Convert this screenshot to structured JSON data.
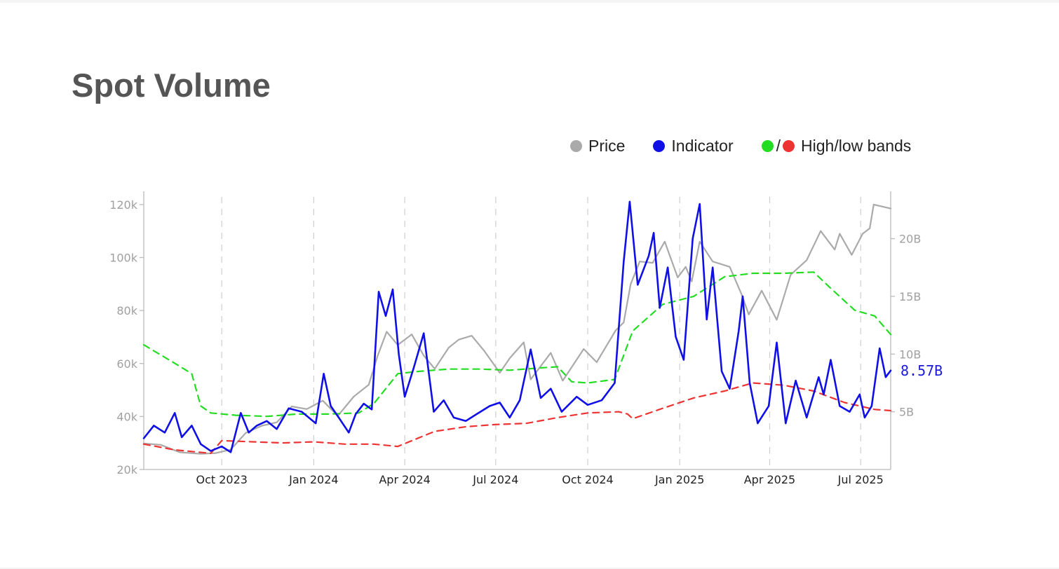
{
  "page": {
    "title": "Spot Volume"
  },
  "legend": {
    "price": {
      "label": "Price",
      "color": "#aaaaaa"
    },
    "indicator": {
      "label": "Indicator",
      "color": "#1010e6"
    },
    "bands": {
      "label": "High/low bands",
      "separator": "/",
      "high_color": "#22dd22",
      "low_color": "#ee3333"
    }
  },
  "chart_data": {
    "type": "line",
    "title": "Spot Volume",
    "x_axis": {
      "range": [
        "2023-07-15",
        "2025-07-31"
      ],
      "ticks": [
        "Oct 2023",
        "Jan 2024",
        "Apr 2024",
        "Jul 2024",
        "Oct 2024",
        "Jan 2025",
        "Apr 2025",
        "Jul 2025"
      ],
      "tick_dates": [
        "2023-10-01",
        "2024-01-01",
        "2024-04-01",
        "2024-07-01",
        "2024-10-01",
        "2025-01-01",
        "2025-04-01",
        "2025-07-01"
      ],
      "grid": "dashed-vertical"
    },
    "y_left": {
      "label": "Price",
      "range": [
        20000,
        125000
      ],
      "ticks": [
        20000,
        40000,
        60000,
        80000,
        100000,
        120000
      ],
      "tick_labels": [
        "20k",
        "40k",
        "60k",
        "80k",
        "100k",
        "120k"
      ]
    },
    "y_right": {
      "label": "Indicator",
      "range": [
        0,
        24.1
      ],
      "ticks": [
        5,
        10,
        15,
        20
      ],
      "tick_labels": [
        "5B",
        "10B",
        "15B",
        "20B"
      ]
    },
    "last_value_label": "8.57B",
    "series": [
      {
        "name": "Price",
        "axis": "left",
        "color": "#aaaaaa",
        "style": "solid",
        "points": [
          [
            "2023-07-15",
            29800
          ],
          [
            "2023-08-01",
            29300
          ],
          [
            "2023-08-20",
            26500
          ],
          [
            "2023-09-10",
            25900
          ],
          [
            "2023-09-25",
            26200
          ],
          [
            "2023-10-10",
            27500
          ],
          [
            "2023-10-25",
            33800
          ],
          [
            "2023-11-10",
            36500
          ],
          [
            "2023-11-25",
            37800
          ],
          [
            "2023-12-10",
            43800
          ],
          [
            "2023-12-25",
            42800
          ],
          [
            "2024-01-10",
            46000
          ],
          [
            "2024-01-25",
            40200
          ],
          [
            "2024-02-10",
            47500
          ],
          [
            "2024-02-25",
            52000
          ],
          [
            "2024-03-05",
            63000
          ],
          [
            "2024-03-14",
            72000
          ],
          [
            "2024-03-25",
            67000
          ],
          [
            "2024-04-08",
            71000
          ],
          [
            "2024-04-20",
            63000
          ],
          [
            "2024-05-01",
            58000
          ],
          [
            "2024-05-15",
            66000
          ],
          [
            "2024-05-25",
            69000
          ],
          [
            "2024-06-07",
            70500
          ],
          [
            "2024-06-20",
            64500
          ],
          [
            "2024-07-05",
            56500
          ],
          [
            "2024-07-15",
            62000
          ],
          [
            "2024-07-29",
            68000
          ],
          [
            "2024-08-05",
            54000
          ],
          [
            "2024-08-25",
            64000
          ],
          [
            "2024-09-06",
            53500
          ],
          [
            "2024-09-27",
            65500
          ],
          [
            "2024-10-10",
            60500
          ],
          [
            "2024-10-29",
            72500
          ],
          [
            "2024-11-06",
            75500
          ],
          [
            "2024-11-13",
            90000
          ],
          [
            "2024-11-22",
            98500
          ],
          [
            "2024-12-05",
            98000
          ],
          [
            "2024-12-17",
            106000
          ],
          [
            "2024-12-30",
            92500
          ],
          [
            "2025-01-07",
            96500
          ],
          [
            "2025-01-13",
            91000
          ],
          [
            "2025-01-21",
            106000
          ],
          [
            "2025-02-03",
            98500
          ],
          [
            "2025-02-20",
            96500
          ],
          [
            "2025-03-04",
            86000
          ],
          [
            "2025-03-11",
            78500
          ],
          [
            "2025-03-24",
            87500
          ],
          [
            "2025-04-08",
            76500
          ],
          [
            "2025-04-22",
            93500
          ],
          [
            "2025-05-08",
            99000
          ],
          [
            "2025-05-22",
            110000
          ],
          [
            "2025-06-05",
            103000
          ],
          [
            "2025-06-10",
            109000
          ],
          [
            "2025-06-22",
            101000
          ],
          [
            "2025-07-03",
            109000
          ],
          [
            "2025-07-10",
            111000
          ],
          [
            "2025-07-14",
            120000
          ],
          [
            "2025-07-31",
            118500
          ]
        ]
      },
      {
        "name": "Indicator",
        "axis": "right",
        "color": "#1010e6",
        "style": "solid",
        "points": [
          [
            "2023-07-15",
            2.7
          ],
          [
            "2023-07-25",
            3.8
          ],
          [
            "2023-08-05",
            3.2
          ],
          [
            "2023-08-15",
            4.9
          ],
          [
            "2023-08-22",
            2.8
          ],
          [
            "2023-09-01",
            3.8
          ],
          [
            "2023-09-10",
            2.2
          ],
          [
            "2023-09-20",
            1.6
          ],
          [
            "2023-10-01",
            2.0
          ],
          [
            "2023-10-10",
            1.5
          ],
          [
            "2023-10-20",
            4.9
          ],
          [
            "2023-10-28",
            3.2
          ],
          [
            "2023-11-05",
            3.8
          ],
          [
            "2023-11-15",
            4.2
          ],
          [
            "2023-11-25",
            3.5
          ],
          [
            "2023-12-07",
            5.3
          ],
          [
            "2023-12-20",
            5.0
          ],
          [
            "2024-01-03",
            4.0
          ],
          [
            "2024-01-11",
            8.3
          ],
          [
            "2024-01-18",
            5.5
          ],
          [
            "2024-01-26",
            4.5
          ],
          [
            "2024-02-05",
            3.2
          ],
          [
            "2024-02-12",
            4.8
          ],
          [
            "2024-02-20",
            5.7
          ],
          [
            "2024-02-28",
            5.2
          ],
          [
            "2024-03-06",
            15.4
          ],
          [
            "2024-03-13",
            13.3
          ],
          [
            "2024-03-20",
            15.6
          ],
          [
            "2024-03-26",
            10.0
          ],
          [
            "2024-04-01",
            6.3
          ],
          [
            "2024-04-10",
            8.8
          ],
          [
            "2024-04-20",
            11.8
          ],
          [
            "2024-04-30",
            5.0
          ],
          [
            "2024-05-10",
            6.0
          ],
          [
            "2024-05-20",
            4.5
          ],
          [
            "2024-06-01",
            4.2
          ],
          [
            "2024-06-12",
            4.8
          ],
          [
            "2024-06-25",
            5.5
          ],
          [
            "2024-07-05",
            5.8
          ],
          [
            "2024-07-15",
            4.5
          ],
          [
            "2024-07-25",
            6.0
          ],
          [
            "2024-08-05",
            10.4
          ],
          [
            "2024-08-15",
            6.2
          ],
          [
            "2024-08-25",
            7.0
          ],
          [
            "2024-09-05",
            5.0
          ],
          [
            "2024-09-20",
            6.3
          ],
          [
            "2024-10-01",
            5.6
          ],
          [
            "2024-10-15",
            6.0
          ],
          [
            "2024-10-28",
            7.5
          ],
          [
            "2024-11-06",
            18.0
          ],
          [
            "2024-11-12",
            23.2
          ],
          [
            "2024-11-20",
            16.0
          ],
          [
            "2024-12-01",
            18.5
          ],
          [
            "2024-12-06",
            20.5
          ],
          [
            "2024-12-12",
            14.0
          ],
          [
            "2024-12-20",
            17.5
          ],
          [
            "2024-12-28",
            11.5
          ],
          [
            "2025-01-05",
            9.5
          ],
          [
            "2025-01-14",
            20.0
          ],
          [
            "2025-01-21",
            23.0
          ],
          [
            "2025-01-28",
            13.0
          ],
          [
            "2025-02-03",
            17.5
          ],
          [
            "2025-02-12",
            8.5
          ],
          [
            "2025-02-20",
            7.0
          ],
          [
            "2025-03-01",
            12.0
          ],
          [
            "2025-03-05",
            15.0
          ],
          [
            "2025-03-12",
            7.5
          ],
          [
            "2025-03-20",
            4.0
          ],
          [
            "2025-03-31",
            5.5
          ],
          [
            "2025-04-08",
            11.0
          ],
          [
            "2025-04-17",
            4.0
          ],
          [
            "2025-04-27",
            7.7
          ],
          [
            "2025-05-08",
            4.5
          ],
          [
            "2025-05-20",
            8.0
          ],
          [
            "2025-05-25",
            6.5
          ],
          [
            "2025-06-01",
            9.5
          ],
          [
            "2025-06-10",
            5.5
          ],
          [
            "2025-06-20",
            5.0
          ],
          [
            "2025-06-30",
            6.5
          ],
          [
            "2025-07-05",
            4.5
          ],
          [
            "2025-07-12",
            5.5
          ],
          [
            "2025-07-20",
            10.5
          ],
          [
            "2025-07-26",
            8.0
          ],
          [
            "2025-07-31",
            8.57
          ]
        ]
      },
      {
        "name": "High band",
        "axis": "right",
        "color": "#22dd22",
        "style": "dashed",
        "points": [
          [
            "2023-07-15",
            10.8
          ],
          [
            "2023-08-15",
            9.2
          ],
          [
            "2023-09-01",
            8.3
          ],
          [
            "2023-09-10",
            5.5
          ],
          [
            "2023-09-20",
            4.9
          ],
          [
            "2023-10-15",
            4.7
          ],
          [
            "2023-11-15",
            4.6
          ],
          [
            "2023-12-15",
            4.8
          ],
          [
            "2024-01-15",
            4.8
          ],
          [
            "2024-02-15",
            4.9
          ],
          [
            "2024-03-01",
            5.7
          ],
          [
            "2024-03-25",
            8.3
          ],
          [
            "2024-04-15",
            8.5
          ],
          [
            "2024-05-15",
            8.7
          ],
          [
            "2024-06-15",
            8.7
          ],
          [
            "2024-07-15",
            8.6
          ],
          [
            "2024-08-15",
            8.8
          ],
          [
            "2024-09-01",
            8.9
          ],
          [
            "2024-09-15",
            7.6
          ],
          [
            "2024-10-01",
            7.5
          ],
          [
            "2024-10-28",
            7.8
          ],
          [
            "2024-11-15",
            12.0
          ],
          [
            "2024-12-15",
            14.3
          ],
          [
            "2025-01-15",
            15.0
          ],
          [
            "2025-02-15",
            16.7
          ],
          [
            "2025-03-15",
            17.0
          ],
          [
            "2025-04-15",
            17.0
          ],
          [
            "2025-05-15",
            17.1
          ],
          [
            "2025-06-01",
            15.7
          ],
          [
            "2025-06-25",
            13.8
          ],
          [
            "2025-07-15",
            13.3
          ],
          [
            "2025-07-31",
            11.7
          ]
        ]
      },
      {
        "name": "Low band",
        "axis": "right",
        "color": "#ee3333",
        "style": "dashed",
        "points": [
          [
            "2023-07-15",
            2.2
          ],
          [
            "2023-08-15",
            1.7
          ],
          [
            "2023-09-20",
            1.4
          ],
          [
            "2023-10-01",
            2.5
          ],
          [
            "2023-11-01",
            2.4
          ],
          [
            "2023-12-01",
            2.3
          ],
          [
            "2024-01-01",
            2.4
          ],
          [
            "2024-02-01",
            2.2
          ],
          [
            "2024-03-01",
            2.2
          ],
          [
            "2024-03-25",
            2.0
          ],
          [
            "2024-05-01",
            3.3
          ],
          [
            "2024-06-01",
            3.7
          ],
          [
            "2024-07-01",
            3.9
          ],
          [
            "2024-08-01",
            4.0
          ],
          [
            "2024-09-01",
            4.5
          ],
          [
            "2024-10-01",
            4.9
          ],
          [
            "2024-11-01",
            5.0
          ],
          [
            "2024-11-10",
            4.8
          ],
          [
            "2024-11-15",
            4.4
          ],
          [
            "2024-12-15",
            5.3
          ],
          [
            "2025-01-15",
            6.2
          ],
          [
            "2025-02-15",
            6.8
          ],
          [
            "2025-03-15",
            7.5
          ],
          [
            "2025-04-15",
            7.3
          ],
          [
            "2025-05-15",
            6.8
          ],
          [
            "2025-06-15",
            5.8
          ],
          [
            "2025-07-15",
            5.2
          ],
          [
            "2025-07-31",
            5.1
          ]
        ]
      }
    ]
  }
}
